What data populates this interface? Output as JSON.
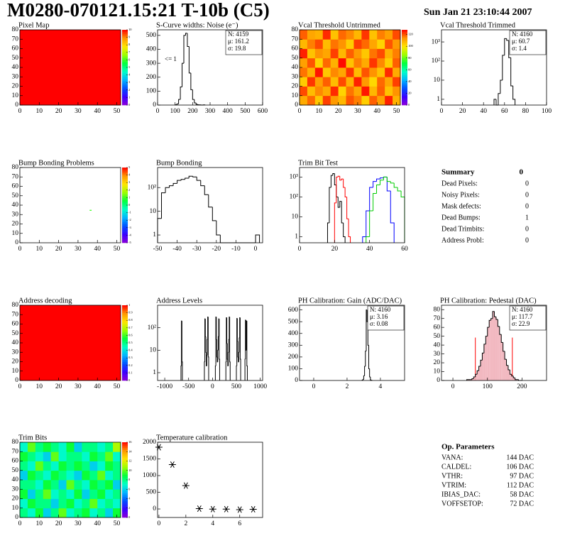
{
  "header": {
    "title": "M0280-070121.15:21 T-10b (C5)",
    "date": "Sun Jan 21 23:10:44 2007"
  },
  "palette": [
    "#8c00d8",
    "#3a00ff",
    "#0050ff",
    "#00b4ff",
    "#00ffc8",
    "#00ff3c",
    "#9bff00",
    "#ffe600",
    "#ff9600",
    "#ff0000"
  ],
  "chart_data": [
    {
      "type": "heatmap",
      "title": "Pixel Map",
      "xlim": [
        0,
        52
      ],
      "ylim": [
        0,
        80
      ],
      "xticks": [
        0,
        10,
        20,
        30,
        40,
        50
      ],
      "yticks": [
        0,
        10,
        20,
        30,
        40,
        50,
        60,
        70,
        80
      ],
      "zlim": [
        0,
        10
      ],
      "zticks": [
        0,
        1,
        2,
        3,
        4,
        5,
        6,
        7,
        8,
        9,
        10
      ],
      "values": [
        [
          10
        ]
      ]
    },
    {
      "type": "histogram",
      "title": "S-Curve widths: Noise (e⁻)",
      "xlim": [
        0,
        600
      ],
      "xticks": [
        0,
        100,
        200,
        300,
        400,
        500,
        600
      ],
      "ylim": [
        0,
        540
      ],
      "yticks": [
        0,
        100,
        200,
        300,
        400,
        500
      ],
      "stats": [
        "N: 4159",
        "μ: 161.2",
        "σ: 19.8"
      ],
      "annotation": "<= 1",
      "series": [
        {
          "color": "#000000",
          "bins": [
            100,
            110,
            120,
            130,
            140,
            150,
            160,
            170,
            180,
            190,
            200,
            210,
            220,
            230,
            240,
            250,
            260,
            270
          ],
          "counts": [
            2,
            8,
            40,
            130,
            300,
            500,
            515,
            420,
            230,
            110,
            40,
            15,
            5,
            2,
            1,
            0,
            1
          ]
        }
      ]
    },
    {
      "type": "heatmap",
      "title": "Vcal Threshold Untrimmed",
      "xlim": [
        0,
        52
      ],
      "ylim": [
        0,
        80
      ],
      "xticks": [
        0,
        10,
        20,
        30,
        40,
        50
      ],
      "yticks": [
        0,
        10,
        20,
        30,
        40,
        50,
        60,
        70,
        80
      ],
      "zlim": [
        0,
        128
      ],
      "zticks": [
        0,
        20,
        40,
        60,
        80,
        100,
        120
      ],
      "values": [
        [
          110,
          118,
          105,
          122,
          113,
          108,
          120,
          116,
          104,
          119,
          112,
          125,
          109
        ],
        [
          121,
          107,
          115,
          110,
          124,
          103,
          117,
          111,
          126,
          108,
          119,
          106,
          114
        ],
        [
          104,
          123,
          112,
          119,
          107,
          121,
          109,
          125,
          113,
          102,
          118,
          111,
          122
        ],
        [
          117,
          109,
          126,
          105,
          115,
          111,
          123,
          107,
          120,
          114,
          106,
          124,
          110
        ],
        [
          112,
          120,
          103,
          118,
          109,
          127,
          106,
          116,
          110,
          123,
          115,
          104,
          119
        ],
        [
          125,
          106,
          114,
          111,
          122,
          108,
          119,
          113,
          105,
          117,
          121,
          109,
          116
        ],
        [
          108,
          116,
          121,
          107,
          117,
          114,
          104,
          122,
          118,
          111,
          103,
          120,
          113
        ],
        [
          119,
          111,
          109,
          124,
          106,
          118,
          115,
          108,
          123,
          106,
          116,
          112,
          121
        ]
      ]
    },
    {
      "type": "histogram",
      "title": "Vcal Threshold Trimmed",
      "log_y": true,
      "xlim": [
        0,
        100
      ],
      "xticks": [
        0,
        20,
        40,
        60,
        80,
        100
      ],
      "ylim": [
        0.5,
        4300
      ],
      "yticks": [
        1,
        10,
        {
          "value": 100,
          "label": "10²"
        },
        {
          "value": 1000,
          "label": "10³"
        }
      ],
      "stats": [
        "N: 4160",
        "μ: 60.7",
        "σ: 1.4"
      ],
      "series": [
        {
          "color": "#000000",
          "bins": [
            50,
            52,
            54,
            56,
            58,
            60,
            62,
            64,
            66,
            68,
            70
          ],
          "counts": [
            1,
            0,
            2,
            10,
            200,
            1500,
            1200,
            150,
            5,
            1
          ]
        }
      ]
    },
    {
      "type": "heatmap",
      "title": "Bump Bonding Problems",
      "xlim": [
        0,
        52
      ],
      "ylim": [
        0,
        80
      ],
      "xticks": [
        0,
        10,
        20,
        30,
        40,
        50
      ],
      "yticks": [
        0,
        10,
        20,
        30,
        40,
        50,
        60,
        70,
        80
      ],
      "zlim": [
        -5,
        5
      ],
      "zticks": [
        -5,
        -4,
        -3,
        -2,
        -1,
        0,
        1,
        2,
        3,
        4,
        5
      ],
      "cells": [
        {
          "x": 36,
          "y": 34,
          "value": 1
        }
      ]
    },
    {
      "type": "histogram",
      "title": "Bump Bonding",
      "log_y": true,
      "xlim": [
        -50,
        3.6
      ],
      "xticks": [
        -50,
        -40,
        -30,
        -20,
        -10,
        0
      ],
      "ylim": [
        0.47,
        700
      ],
      "yticks": [
        1,
        10,
        {
          "value": 100,
          "label": "10²"
        }
      ],
      "series": [
        {
          "color": "#000000",
          "bins": [
            -50,
            -48,
            -46,
            -44,
            -42,
            -40,
            -38,
            -36,
            -34,
            -32,
            -30,
            -28,
            -26,
            -24,
            -22,
            -20,
            -18,
            -16,
            -14,
            -12,
            -10,
            -8,
            -6,
            -4,
            -2,
            0,
            2
          ],
          "counts": [
            5,
            60,
            100,
            120,
            150,
            200,
            220,
            250,
            300,
            280,
            200,
            120,
            50,
            15,
            4,
            1,
            0,
            0,
            0,
            0,
            0,
            0,
            0,
            0,
            0,
            1
          ]
        }
      ]
    },
    {
      "type": "histogram",
      "title": "Trim Bit Test",
      "log_y": true,
      "xlim": [
        0,
        60
      ],
      "xticks": [
        0,
        20,
        40,
        60
      ],
      "ylim": [
        0.5,
        3000
      ],
      "yticks": [
        1,
        10,
        {
          "value": 100,
          "label": "10²"
        },
        {
          "value": 1000,
          "label": "10³"
        }
      ],
      "series": [
        {
          "color": "#000000",
          "bins": [
            16,
            17,
            18,
            19,
            20,
            21,
            22,
            23,
            24,
            25,
            26
          ],
          "counts": [
            5,
            300,
            1200,
            1500,
            400,
            100,
            30,
            60,
            5,
            1
          ]
        },
        {
          "color": "#ff0000",
          "bins": [
            20,
            21,
            22,
            23,
            24,
            25,
            26,
            27,
            28,
            29
          ],
          "counts": [
            50,
            1000,
            1100,
            700,
            800,
            300,
            100,
            8,
            1
          ]
        },
        {
          "color": "#0000ff",
          "bins": [
            36,
            38,
            40,
            42,
            44,
            46,
            48,
            50,
            52,
            54
          ],
          "counts": [
            1,
            20,
            300,
            600,
            800,
            900,
            1000,
            200,
            5
          ]
        },
        {
          "color": "#00cc00",
          "bins": [
            38,
            40,
            42,
            44,
            46,
            48,
            50,
            52,
            54,
            56,
            58,
            60
          ],
          "counts": [
            1,
            20,
            150,
            400,
            700,
            1000,
            600,
            500,
            300,
            200,
            100
          ]
        }
      ]
    },
    {
      "type": "heatmap",
      "title": "Address decoding",
      "xlim": [
        0,
        52
      ],
      "ylim": [
        0,
        80
      ],
      "xticks": [
        0,
        10,
        20,
        30,
        40,
        50
      ],
      "yticks": [
        0,
        10,
        20,
        30,
        40,
        50,
        60,
        70,
        80
      ],
      "zlim": [
        0,
        1
      ],
      "zticks": [
        0,
        0.1,
        0.2,
        0.3,
        0.4,
        0.5,
        0.6,
        0.7,
        0.8,
        0.9,
        1
      ],
      "values": [
        [
          1
        ]
      ]
    },
    {
      "type": "histogram",
      "title": "Address Levels",
      "log_y": true,
      "xlim": [
        -1150,
        1050
      ],
      "xticks": [
        -1000,
        -500,
        0,
        500,
        1000
      ],
      "ylim": [
        0.45,
        1000
      ],
      "yticks": [
        1,
        10,
        {
          "value": 100,
          "label": "10²"
        }
      ],
      "series": [
        {
          "color": "#000000",
          "bins": [
            -660,
            -650,
            -640,
            -630
          ],
          "counts": [
            2,
            200,
            3
          ]
        },
        {
          "color": "#000000",
          "bins": [
            -170,
            -160,
            -150,
            -140,
            -130,
            -120,
            -110,
            -100,
            -90,
            -80
          ],
          "counts": [
            3,
            250,
            40,
            8,
            2,
            6,
            30,
            300,
            5
          ]
        },
        {
          "color": "#000000",
          "bins": [
            60,
            70,
            80,
            90,
            100,
            110,
            120,
            130,
            140,
            150
          ],
          "counts": [
            2,
            300,
            30,
            5,
            3,
            10,
            40,
            250,
            4
          ]
        },
        {
          "color": "#000000",
          "bins": [
            280,
            290,
            300,
            310,
            320,
            330,
            340,
            350,
            360,
            370
          ],
          "counts": [
            3,
            280,
            20,
            4,
            2,
            8,
            30,
            300,
            3
          ]
        },
        {
          "color": "#000000",
          "bins": [
            500,
            510,
            520,
            530,
            540,
            550,
            560,
            570,
            580,
            590
          ],
          "counts": [
            2,
            260,
            25,
            5,
            3,
            8,
            35,
            280,
            4
          ]
        },
        {
          "color": "#000000",
          "bins": [
            680,
            690,
            700,
            710,
            720,
            730
          ],
          "counts": [
            4,
            220,
            10,
            200,
            2
          ]
        }
      ]
    },
    {
      "type": "histogram",
      "title": "PH Calibration: Gain (ADC/DAC)",
      "xlim": [
        -0.85,
        5.45
      ],
      "xticks": [
        0,
        2,
        4
      ],
      "ylim": [
        0,
        640
      ],
      "yticks": [
        0,
        100,
        200,
        300,
        400,
        500,
        600
      ],
      "stats": [
        "N: 4160",
        "μ: 3.16",
        "σ: 0.08"
      ],
      "series": [
        {
          "color": "#000000",
          "bins": [
            2.9,
            2.95,
            3.0,
            3.05,
            3.1,
            3.15,
            3.2,
            3.25,
            3.3,
            3.35,
            3.4,
            3.45,
            3.5
          ],
          "counts": [
            2,
            10,
            40,
            120,
            250,
            600,
            500,
            300,
            100,
            30,
            5,
            1
          ]
        }
      ]
    },
    {
      "type": "histogram",
      "title": "PH Calibration: Pedestal (DAC)",
      "xlim": [
        -33,
        271
      ],
      "xticks": [
        0,
        100,
        200
      ],
      "ylim": [
        0,
        85
      ],
      "yticks": [
        0,
        10,
        20,
        30,
        40,
        50,
        60,
        70,
        80
      ],
      "stats": [
        "N: 4160",
        "μ: 117.7",
        "σ: 22.9"
      ],
      "stats_colors": [
        "#000000",
        "#ff0000",
        "#ff0000"
      ],
      "fit_range": [
        65,
        172
      ],
      "fit_color": "#ff0000",
      "series": [
        {
          "color": "#000000",
          "fill": "#f2b8c0",
          "bins": [
            40,
            45,
            50,
            55,
            60,
            65,
            70,
            75,
            80,
            85,
            90,
            95,
            100,
            105,
            110,
            115,
            120,
            125,
            130,
            135,
            140,
            145,
            150,
            155,
            160,
            165,
            170,
            175,
            180,
            185,
            190,
            195,
            200
          ],
          "counts": [
            1,
            1,
            1,
            2,
            4,
            7,
            11,
            16,
            23,
            31,
            41,
            50,
            60,
            68,
            70,
            78,
            72,
            69,
            61,
            52,
            43,
            33,
            24,
            17,
            12,
            7,
            5,
            3,
            1,
            1,
            0,
            0
          ]
        }
      ]
    },
    {
      "type": "heatmap",
      "title": "Trim Bits",
      "xlim": [
        0,
        52
      ],
      "ylim": [
        0,
        80
      ],
      "xticks": [
        0,
        10,
        20,
        30,
        40,
        50
      ],
      "yticks": [
        0,
        10,
        20,
        30,
        40,
        50,
        60,
        70,
        80
      ],
      "zlim": [
        0,
        16
      ],
      "zticks": [
        0,
        2,
        4,
        6,
        8,
        10,
        12,
        14,
        16
      ],
      "values": [
        [
          8,
          7,
          9,
          6,
          8,
          10,
          7,
          8,
          9,
          7,
          8,
          6,
          9
        ],
        [
          7,
          9,
          8,
          8,
          6,
          8,
          9,
          7,
          8,
          10,
          7,
          8,
          7
        ],
        [
          9,
          6,
          8,
          10,
          7,
          8,
          7,
          9,
          6,
          8,
          9,
          7,
          8
        ],
        [
          8,
          8,
          7,
          9,
          8,
          6,
          10,
          8,
          7,
          9,
          8,
          9,
          6
        ],
        [
          6,
          9,
          8,
          7,
          9,
          8,
          7,
          6,
          9,
          8,
          10,
          7,
          8
        ],
        [
          8,
          7,
          10,
          8,
          7,
          9,
          8,
          9,
          8,
          6,
          7,
          9,
          8
        ],
        [
          9,
          8,
          7,
          6,
          10,
          7,
          8,
          8,
          7,
          9,
          8,
          10,
          7
        ],
        [
          7,
          10,
          8,
          9,
          8,
          7,
          9,
          6,
          8,
          8,
          7,
          8,
          11
        ]
      ]
    },
    {
      "type": "scatter",
      "title": "Temperature calibration",
      "xlim": [
        -0.1,
        7.7
      ],
      "xticks": [
        0,
        2,
        4,
        6
      ],
      "ylim": [
        -255,
        2000
      ],
      "yticks": [
        0,
        500,
        1000,
        1500,
        2000
      ],
      "color": "#000000",
      "x": [
        0,
        1,
        2,
        3,
        4,
        5,
        6,
        7
      ],
      "values": [
        1850,
        1330,
        700,
        10,
        -5,
        -5,
        -20,
        -10
      ]
    }
  ],
  "summary": {
    "title": "Summary",
    "value": 0,
    "rows": [
      [
        "Dead Pixels:",
        0
      ],
      [
        "Noisy Pixels:",
        0
      ],
      [
        "Mask defects:",
        0
      ],
      [
        "Dead Bumps:",
        1
      ],
      [
        "Dead Trimbits:",
        0
      ],
      [
        "Address Probl:",
        0
      ]
    ]
  },
  "op_parameters": {
    "title": "Op. Parameters",
    "rows": [
      [
        "VANA:",
        "144 DAC"
      ],
      [
        "CALDEL:",
        "106 DAC"
      ],
      [
        "VTHR:",
        "97 DAC"
      ],
      [
        "VTRIM:",
        "112 DAC"
      ],
      [
        "IBIAS_DAC:",
        "58 DAC"
      ],
      [
        "VOFFSETOP:",
        "72 DAC"
      ]
    ]
  }
}
